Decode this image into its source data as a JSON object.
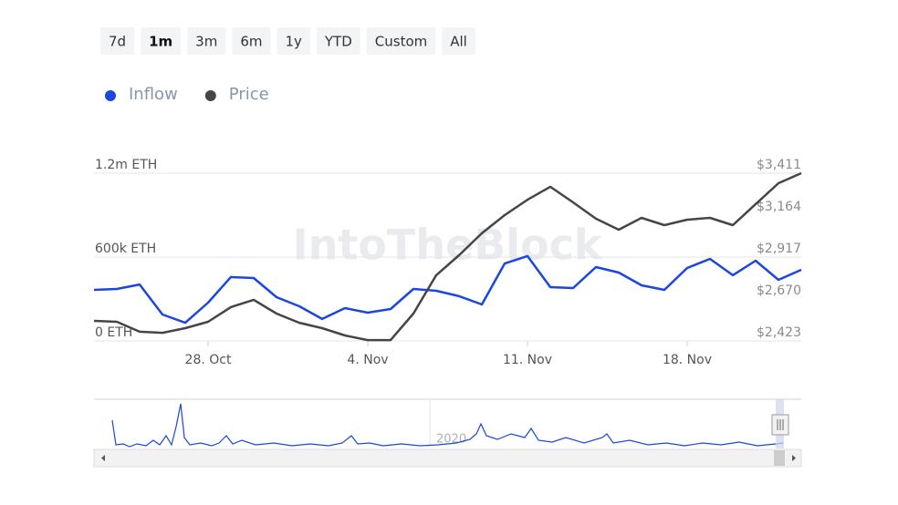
{
  "range_buttons": [
    "7d",
    "1m",
    "3m",
    "6m",
    "1y",
    "YTD",
    "Custom",
    "All"
  ],
  "selected_range": "1m",
  "watermark": "IntoTheBlock",
  "navigator_label": "2020",
  "chart_data": {
    "type": "line",
    "categories": [
      null,
      null,
      null,
      null,
      null,
      "28. Oct",
      null,
      null,
      null,
      null,
      null,
      null,
      "4. Nov",
      null,
      null,
      null,
      null,
      null,
      null,
      "11. Nov",
      null,
      null,
      null,
      null,
      null,
      null,
      "18. Nov",
      null,
      null,
      null,
      null,
      null
    ],
    "series": [
      {
        "name": "Inflow",
        "color": "#1b46e0",
        "values": [
          365000,
          372000,
          404000,
          189000,
          130000,
          274000,
          457000,
          450000,
          313000,
          248000,
          157000,
          235000,
          202000,
          228000,
          372000,
          359000,
          320000,
          261000,
          554000,
          607000,
          385000,
          378000,
          528000,
          489000,
          398000,
          365000,
          522000,
          587000,
          470000,
          574000,
          437000,
          509000
        ]
      },
      {
        "name": "Price",
        "color": "#434648",
        "axis": "y2",
        "values": [
          2541,
          2536,
          2477,
          2471,
          2498,
          2536,
          2622,
          2665,
          2584,
          2530,
          2498,
          2455,
          2428,
          2428,
          2584,
          2810,
          2928,
          3057,
          3164,
          3255,
          3331,
          3239,
          3143,
          3078,
          3148,
          3105,
          3137,
          3148,
          3105,
          3229,
          3352,
          3411
        ]
      }
    ],
    "ylim": [
      0,
      1200000
    ],
    "yticks": [
      {
        "value": 0,
        "label": "0 ETH"
      },
      {
        "value": 600000,
        "label": "600k ETH"
      },
      {
        "value": 1200000,
        "label": "1.2m ETH"
      }
    ],
    "y2lim": [
      2423,
      3411
    ],
    "y2ticks": [
      {
        "value": 2423,
        "label": "$2,423"
      },
      {
        "value": 2670,
        "label": "$2,670"
      },
      {
        "value": 2917,
        "label": "$2,917"
      },
      {
        "value": 3164,
        "label": "$3,164"
      },
      {
        "value": 3411,
        "label": "$3,411"
      }
    ],
    "grid": true
  }
}
